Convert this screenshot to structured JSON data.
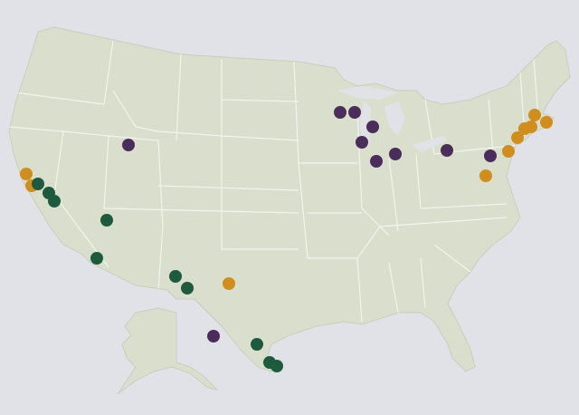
{
  "map": {
    "colors": [
      "#4b2d5b",
      "#d08e1e",
      "#1e5a3d"
    ]
  }
}
